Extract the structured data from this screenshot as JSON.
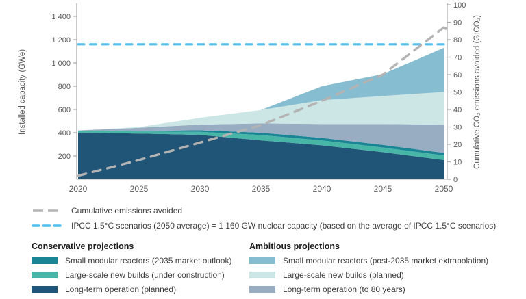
{
  "chart_data": {
    "type": "area",
    "stacked": true,
    "x": [
      2020,
      2025,
      2030,
      2035,
      2040,
      2045,
      2050
    ],
    "x_labels": [
      "2020",
      "2025",
      "2030",
      "2035",
      "2040",
      "2045",
      "2050"
    ],
    "left_axis": {
      "label": "Installed capacity (GWe)",
      "max": 1500,
      "tick_values": [
        200,
        400,
        600,
        800,
        1000,
        1200,
        1400
      ],
      "tick_labels": [
        "200",
        "400",
        "600",
        "800",
        "1 000",
        "1 200",
        "1 400"
      ]
    },
    "right_axis": {
      "label": "Cumulative CO₂ emissions avoided (GtCO₂)",
      "max": 100,
      "tick_values": [
        0,
        10,
        20,
        30,
        40,
        50,
        60,
        70,
        80,
        90,
        100
      ],
      "tick_labels": [
        "0",
        "10",
        "20",
        "30",
        "40",
        "50",
        "60",
        "70",
        "80",
        "90",
        "100"
      ]
    },
    "series": [
      {
        "name": "Long-term operation (planned)",
        "group": "Conservative projections",
        "color": "#215577",
        "values": [
          400,
          393,
          382,
          335,
          292,
          233,
          165
        ]
      },
      {
        "name": "Large-scale new builds (under construction)",
        "group": "Conservative projections",
        "color": "#47b6a6",
        "values": [
          15,
          18,
          25,
          45,
          42,
          40,
          40
        ]
      },
      {
        "name": "Small modular reactors (2035 market outlook)",
        "group": "Conservative projections",
        "color": "#1a8595",
        "values": [
          0,
          6,
          14,
          20,
          22,
          22,
          22
        ]
      },
      {
        "name": "Long-term operation (to 80 years)",
        "group": "Ambitious projections",
        "color": "#98adc2",
        "values": [
          5,
          26,
          49,
          80,
          119,
          180,
          243
        ]
      },
      {
        "name": "Large-scale new builds (planned)",
        "group": "Ambitious projections",
        "color": "#cbe6e4",
        "values": [
          0,
          5,
          59,
          115,
          205,
          241,
          280
        ]
      },
      {
        "name": "Small modular reactors (post-2035 market extrapolation)",
        "group": "Ambitious projections",
        "color": "#87bdd1",
        "values": [
          0,
          0,
          0,
          0,
          120,
          189,
          380
        ]
      }
    ],
    "emissions_line": {
      "name": "Cumulative emissions avoided",
      "color": "#b3b3b3",
      "values_gtco2": [
        2,
        11,
        21,
        31,
        45,
        60,
        87
      ]
    },
    "ipcc_line": {
      "value_gw": 1160,
      "color": "#4fbeee"
    }
  },
  "legend": {
    "emissions": {
      "label": "Cumulative emissions avoided",
      "color": "#b3b3b3"
    },
    "ipcc": {
      "label": "IPCC 1.5°C scenarios (2050 average) = 1 160 GW nuclear capacity (based on the average of IPCC 1.5°C scenarios)",
      "color": "#4fbeee"
    },
    "conservative": {
      "title": "Conservative projections",
      "items": [
        {
          "label": "Small modular reactors (2035 market outlook)",
          "color": "#1a8595"
        },
        {
          "label": "Large-scale new builds (under construction)",
          "color": "#47b6a6"
        },
        {
          "label": "Long-term operation (planned)",
          "color": "#215577"
        }
      ]
    },
    "ambitious": {
      "title": "Ambitious projections",
      "items": [
        {
          "label": "Small modular reactors (post-2035 market extrapolation)",
          "color": "#87bdd1"
        },
        {
          "label": "Large-scale new builds (planned)",
          "color": "#cbe6e4"
        },
        {
          "label": "Long-term operation (to 80 years)",
          "color": "#98adc2"
        }
      ]
    }
  }
}
